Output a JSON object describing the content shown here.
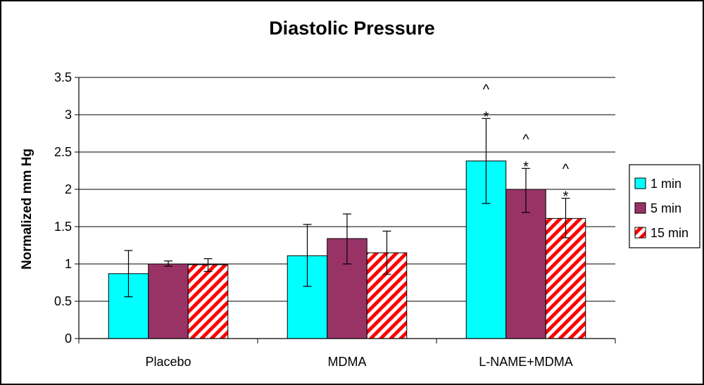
{
  "chart_data": {
    "type": "bar",
    "title": "Diastolic Pressure",
    "xlabel": "",
    "ylabel": "Normalized mm Hg",
    "ylim": [
      0,
      3.5
    ],
    "yticks": [
      0,
      0.5,
      1,
      1.5,
      2,
      2.5,
      3,
      3.5
    ],
    "ytick_labels": [
      "0",
      "0.5",
      "1",
      "1.5",
      "2",
      "2.5",
      "3",
      "3.5"
    ],
    "grid": true,
    "legend_position": "right",
    "categories": [
      "Placebo",
      "MDMA",
      "L-NAME+MDMA"
    ],
    "series": [
      {
        "name": "1 min",
        "color": "#00FFFF",
        "pattern": "solid",
        "values": [
          0.87,
          1.11,
          2.38
        ],
        "error_low": [
          0.56,
          0.7,
          1.81
        ],
        "error_high": [
          1.18,
          1.53,
          2.95
        ]
      },
      {
        "name": "5 min",
        "color": "#993366",
        "pattern": "solid",
        "values": [
          1.0,
          1.34,
          2.0
        ],
        "error_low": [
          0.97,
          1.0,
          1.69
        ],
        "error_high": [
          1.04,
          1.67,
          2.28
        ]
      },
      {
        "name": "15 min",
        "color": "#FF0000",
        "pattern": "diagonal-stripes",
        "values": [
          0.99,
          1.15,
          1.61
        ],
        "error_low": [
          0.9,
          0.86,
          1.35
        ],
        "error_high": [
          1.07,
          1.44,
          1.88
        ]
      }
    ],
    "annotations": [
      {
        "category": "L-NAME+MDMA",
        "series": "1 min",
        "lines": [
          "^",
          "*"
        ]
      },
      {
        "category": "L-NAME+MDMA",
        "series": "5 min",
        "lines": [
          "^",
          "*"
        ]
      },
      {
        "category": "L-NAME+MDMA",
        "series": "15 min",
        "lines": [
          "^",
          "*"
        ]
      }
    ]
  }
}
